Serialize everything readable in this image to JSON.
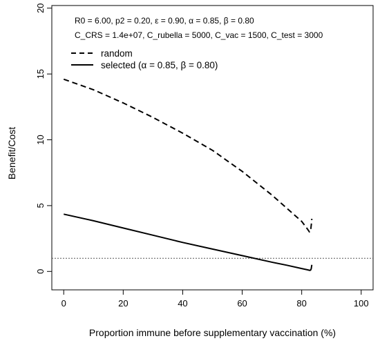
{
  "chart_data": {
    "type": "line",
    "xlabel": "Proportion immune before supplementary vaccination (%)",
    "ylabel": "Benefit/Cost",
    "xlim": [
      -4,
      104
    ],
    "ylim": [
      -1.4,
      20.2
    ],
    "x_ticks": [
      0,
      20,
      40,
      60,
      80,
      100
    ],
    "y_ticks": [
      0,
      5,
      10,
      15,
      20
    ],
    "grid": false,
    "annotations": [
      "R0 = 6.00, p2 = 0.20, ε = 0.90, α = 0.85, β = 0.80",
      "C_CRS = 1.4e+07, C_rubella = 5000, C_vac = 1500, C_test = 3000"
    ],
    "reference_line": {
      "y": 1,
      "style": "dotted"
    },
    "legend_position": "top-left",
    "series": [
      {
        "name": "random",
        "style": "dashed",
        "x": [
          0,
          10,
          20,
          30,
          40,
          50,
          60,
          70,
          75,
          80,
          82,
          82.6,
          82.9,
          83.1,
          83.3,
          83.4
        ],
        "y": [
          14.6,
          13.8,
          12.8,
          11.7,
          10.5,
          9.2,
          7.6,
          5.8,
          4.8,
          3.8,
          3.2,
          3.0,
          3.0,
          3.3,
          3.7,
          4.0
        ]
      },
      {
        "name": "selected (α = 0.85, β = 0.80)",
        "style": "solid",
        "x": [
          0,
          10,
          20,
          30,
          40,
          50,
          60,
          70,
          75,
          80,
          82,
          82.7,
          83.0,
          83.2,
          83.3,
          83.4
        ],
        "y": [
          4.35,
          3.85,
          3.3,
          2.75,
          2.2,
          1.7,
          1.2,
          0.7,
          0.47,
          0.22,
          0.12,
          0.08,
          0.1,
          0.2,
          0.35,
          0.5
        ]
      }
    ]
  }
}
